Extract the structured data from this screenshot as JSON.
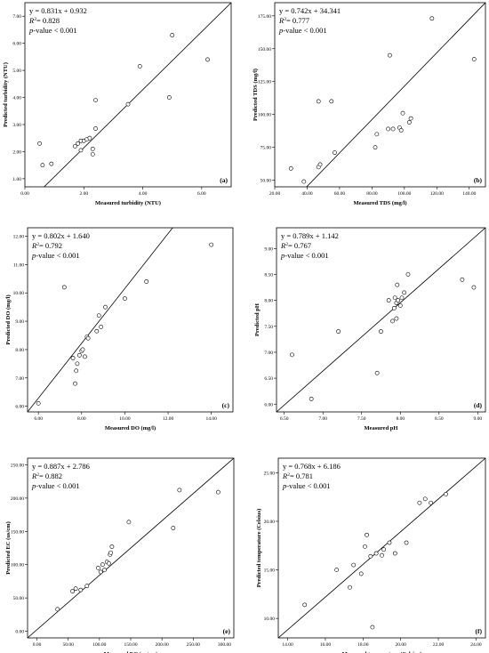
{
  "chart_data": [
    {
      "type": "scatter",
      "panel_label": "(a)",
      "xlabel": "Measured turbidity (NTU)",
      "ylabel": "Predicted turbidity (NTU)",
      "xlim": [
        0,
        7
      ],
      "ylim": [
        0.7,
        7.5
      ],
      "xticks": [
        "0.00",
        "2.00",
        "4.00",
        "6.00"
      ],
      "xtick_values": [
        0,
        2,
        4,
        6
      ],
      "yticks": [
        "1.00",
        "2.00",
        "3.00",
        "4.00",
        "5.00",
        "6.00",
        "7.00"
      ],
      "ytick_values": [
        1,
        2,
        3,
        4,
        5,
        6,
        7
      ],
      "equation": "y = 0.831x + 0.932",
      "r2_prefix": "R",
      "r2_value": "= 0.828",
      "p_prefix": "p",
      "p_value": "-value < 0.001",
      "line": [
        [
          0,
          0
        ],
        [
          7,
          7.5
        ]
      ],
      "points": [
        [
          0.5,
          2.3
        ],
        [
          0.6,
          1.5
        ],
        [
          0.9,
          1.55
        ],
        [
          1.7,
          2.2
        ],
        [
          1.8,
          2.3
        ],
        [
          1.9,
          2.05
        ],
        [
          1.9,
          2.4
        ],
        [
          2.0,
          2.4
        ],
        [
          2.1,
          2.45
        ],
        [
          2.2,
          2.5
        ],
        [
          2.3,
          1.9
        ],
        [
          2.3,
          2.1
        ],
        [
          2.4,
          2.85
        ],
        [
          2.4,
          3.9
        ],
        [
          3.5,
          3.75
        ],
        [
          3.9,
          5.15
        ],
        [
          4.9,
          4.0
        ],
        [
          5.0,
          6.3
        ],
        [
          6.2,
          5.4
        ]
      ]
    },
    {
      "type": "scatter",
      "panel_label": "(b)",
      "xlabel": "Measured TDS (mg/l)",
      "ylabel": "Predicted TDS (mg/l)",
      "xlim": [
        20,
        150
      ],
      "ylim": [
        45,
        185
      ],
      "xticks": [
        "20.00",
        "40.00",
        "60.00",
        "80.00",
        "100.00",
        "120.00",
        "140.00"
      ],
      "xtick_values": [
        20,
        40,
        60,
        80,
        100,
        120,
        140
      ],
      "yticks": [
        "50.00",
        "75.00",
        "100.00",
        "125.00",
        "150.00",
        "175.00"
      ],
      "ytick_values": [
        50,
        75,
        100,
        125,
        150,
        175
      ],
      "equation": "y = 0.742x + 34.341",
      "r2_prefix": "R",
      "r2_value": "= 0.777",
      "p_prefix": "p",
      "p_value": "-value < 0.001",
      "line": [
        [
          20,
          20
        ],
        [
          150,
          185
        ]
      ],
      "points": [
        [
          30,
          59
        ],
        [
          38,
          49
        ],
        [
          47,
          60
        ],
        [
          47,
          110
        ],
        [
          48,
          62
        ],
        [
          55,
          110
        ],
        [
          57,
          71
        ],
        [
          82,
          75
        ],
        [
          83,
          85
        ],
        [
          90,
          89
        ],
        [
          91,
          145
        ],
        [
          93,
          89
        ],
        [
          97,
          90
        ],
        [
          98,
          88
        ],
        [
          99,
          101
        ],
        [
          103,
          94
        ],
        [
          104,
          97
        ],
        [
          117,
          173
        ],
        [
          143,
          142
        ]
      ]
    },
    {
      "type": "scatter",
      "panel_label": "(c)",
      "xlabel": "Measured DO (mg/l)",
      "ylabel": "Predicted DO (mg/l)",
      "xlim": [
        5.5,
        15
      ],
      "ylim": [
        5.8,
        12.3
      ],
      "xticks": [
        "6.00",
        "8.00",
        "10.00",
        "12.00",
        "14.00"
      ],
      "xtick_values": [
        6,
        8,
        10,
        12,
        14
      ],
      "yticks": [
        "6.00",
        "7.00",
        "8.00",
        "9.00",
        "10.00",
        "11.00",
        "12.00"
      ],
      "ytick_values": [
        6,
        7,
        8,
        9,
        10,
        11,
        12
      ],
      "equation": "y = 0.802x + 1.640",
      "r2_prefix": "R",
      "r2_value": "= 0.792",
      "p_prefix": "p",
      "p_value": "-value < 0.001",
      "line": [
        [
          5.5,
          5.8
        ],
        [
          15,
          15
        ]
      ],
      "points": [
        [
          6.0,
          6.1
        ],
        [
          7.2,
          10.2
        ],
        [
          7.6,
          7.7
        ],
        [
          7.7,
          6.8
        ],
        [
          7.75,
          7.25
        ],
        [
          7.8,
          7.5
        ],
        [
          7.9,
          7.8
        ],
        [
          8.0,
          7.95
        ],
        [
          8.05,
          8.0
        ],
        [
          8.15,
          7.75
        ],
        [
          8.25,
          8.45
        ],
        [
          8.3,
          8.4
        ],
        [
          8.7,
          8.65
        ],
        [
          8.8,
          9.2
        ],
        [
          8.9,
          8.8
        ],
        [
          9.1,
          9.5
        ],
        [
          10.0,
          9.8
        ],
        [
          11.0,
          10.4
        ],
        [
          14.0,
          11.7
        ]
      ]
    },
    {
      "type": "scatter",
      "panel_label": "(d)",
      "xlabel": "Measured pH",
      "ylabel": "Predicted pH",
      "xlim": [
        6.4,
        9.1
      ],
      "ylim": [
        5.85,
        9.4
      ],
      "xticks": [
        "6.50",
        "7.00",
        "7.50",
        "8.00",
        "8.50",
        "9.00"
      ],
      "xtick_values": [
        6.5,
        7,
        7.5,
        8,
        8.5,
        9
      ],
      "yticks": [
        "6.00",
        "6.50",
        "7.00",
        "7.50",
        "8.00",
        "8.50",
        "9.00"
      ],
      "ytick_values": [
        6,
        6.5,
        7,
        7.5,
        8,
        8.5,
        9
      ],
      "equation": "y = 0.789x + 1.142",
      "r2_prefix": "R",
      "r2_value": "= 0.767",
      "p_prefix": "p",
      "p_value": "-value < 0.001",
      "line": [
        [
          6.4,
          5.85
        ],
        [
          9.1,
          9.4
        ]
      ],
      "points": [
        [
          6.6,
          6.95
        ],
        [
          6.85,
          6.1
        ],
        [
          7.2,
          7.4
        ],
        [
          7.7,
          6.6
        ],
        [
          7.75,
          7.4
        ],
        [
          7.85,
          8.0
        ],
        [
          7.9,
          7.6
        ],
        [
          7.92,
          7.85
        ],
        [
          7.93,
          8.05
        ],
        [
          7.95,
          7.65
        ],
        [
          7.95,
          7.95
        ],
        [
          7.96,
          8.3
        ],
        [
          7.97,
          8.0
        ],
        [
          8.0,
          7.9
        ],
        [
          8.02,
          8.05
        ],
        [
          8.05,
          8.15
        ],
        [
          8.1,
          8.5
        ],
        [
          8.8,
          8.4
        ],
        [
          8.95,
          8.25
        ]
      ]
    },
    {
      "type": "scatter",
      "panel_label": "(e)",
      "xlabel": "Measured EC (us/cm)",
      "ylabel": "Predicted EC (us/cm)",
      "xlim": [
        -15,
        315
      ],
      "ylim": [
        -10,
        260
      ],
      "xticks": [
        "0.00",
        "50.00",
        "100.00",
        "150.00",
        "200.00",
        "250.00",
        "300.00"
      ],
      "xtick_values": [
        0,
        50,
        100,
        150,
        200,
        250,
        300
      ],
      "yticks": [
        "0.00",
        "50.00",
        "100.00",
        "150.00",
        "200.00",
        "250.00"
      ],
      "ytick_values": [
        0,
        50,
        100,
        150,
        200,
        250
      ],
      "equation": "y = 0.887x + 2.786",
      "r2_prefix": "R",
      "r2_value": "= 0.882",
      "p_prefix": "p",
      "p_value": "-value < 0.001",
      "line": [
        [
          -15,
          -10
        ],
        [
          315,
          260
        ]
      ],
      "points": [
        [
          33,
          33
        ],
        [
          57,
          60
        ],
        [
          62,
          64
        ],
        [
          70,
          62
        ],
        [
          80,
          68
        ],
        [
          98,
          95
        ],
        [
          102,
          89
        ],
        [
          105,
          100
        ],
        [
          108,
          92
        ],
        [
          112,
          104
        ],
        [
          115,
          102
        ],
        [
          117,
          115
        ],
        [
          118,
          118
        ],
        [
          120,
          127
        ],
        [
          147,
          164
        ],
        [
          218,
          155
        ],
        [
          228,
          212
        ],
        [
          290,
          209
        ]
      ]
    },
    {
      "type": "scatter",
      "panel_label": "(f)",
      "xlabel": "Measured temperature (Celsius)",
      "ylabel": "Predicted temperature (Celsius)",
      "xlim": [
        13.5,
        24.5
      ],
      "ylim": [
        8,
        26.5
      ],
      "xticks": [
        "14.00",
        "16.00",
        "18.00",
        "20.00",
        "22.00",
        "24.00"
      ],
      "xtick_values": [
        14,
        16,
        18,
        20,
        22,
        24
      ],
      "yticks": [
        "10.00",
        "15.00",
        "20.00",
        "25.00"
      ],
      "ytick_values": [
        10,
        15,
        20,
        25
      ],
      "equation": "y = 0.768x + 6.186",
      "r2_prefix": "R",
      "r2_value": "= 0.781",
      "p_prefix": "p",
      "p_value": "-value < 0.001",
      "line": [
        [
          13.5,
          8
        ],
        [
          24.5,
          26.5
        ]
      ],
      "points": [
        [
          14.9,
          11.4
        ],
        [
          16.6,
          15.0
        ],
        [
          17.3,
          13.2
        ],
        [
          17.5,
          15.5
        ],
        [
          17.9,
          14.6
        ],
        [
          18.1,
          17.4
        ],
        [
          18.2,
          18.6
        ],
        [
          18.4,
          16.4
        ],
        [
          18.5,
          9.1
        ],
        [
          18.7,
          16.7
        ],
        [
          19.0,
          16.5
        ],
        [
          19.1,
          17.1
        ],
        [
          19.4,
          17.8
        ],
        [
          19.7,
          16.7
        ],
        [
          20.3,
          17.8
        ],
        [
          21.0,
          21.9
        ],
        [
          21.3,
          22.3
        ],
        [
          21.6,
          21.9
        ],
        [
          22.4,
          22.8
        ]
      ]
    }
  ]
}
